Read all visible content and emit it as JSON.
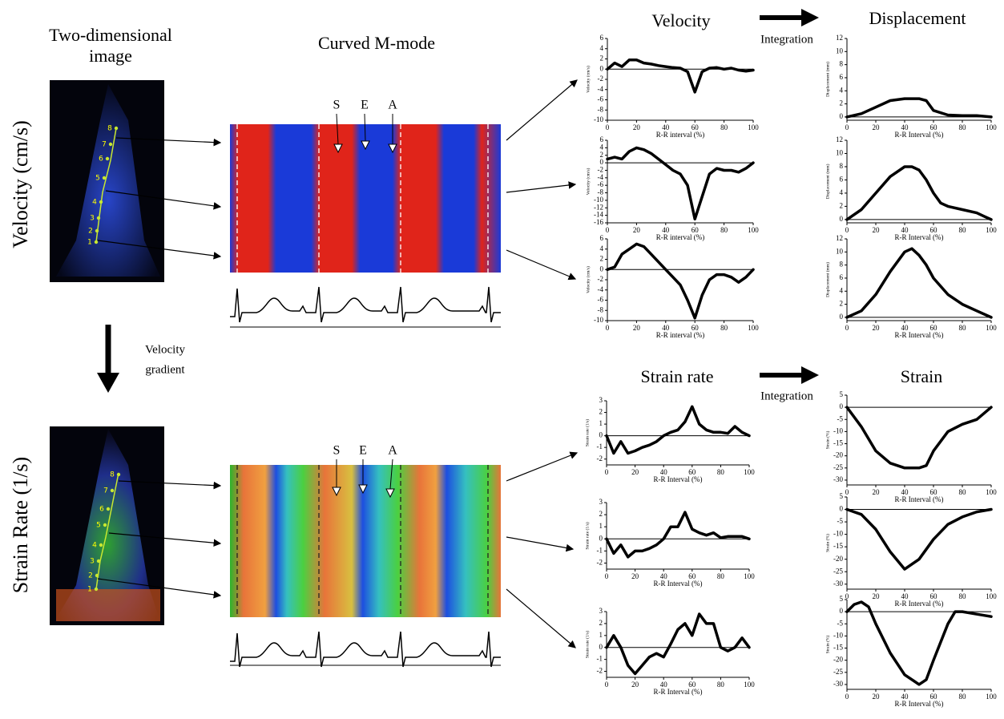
{
  "headers": {
    "two_d": [
      "Two-dimensional",
      "image"
    ],
    "mmode": "Curved M-mode",
    "velocity": "Velocity",
    "displacement": "Displacement",
    "integration": "Integration",
    "strain_rate": "Strain rate",
    "strain": "Strain",
    "velocity_gradient": [
      "Velocity",
      "gradient"
    ]
  },
  "side_labels": [
    "Velocity (cm/s)",
    "Strain Rate (1/s)"
  ],
  "events": [
    "S",
    "E",
    "A"
  ],
  "segments": [
    "1",
    "2",
    "3",
    "4",
    "5",
    "6",
    "7",
    "8"
  ],
  "chart_data": [
    {
      "type": "line",
      "ylabel": "Velocity (cm/s)",
      "xlabel": "R-R interval (%)",
      "color": "#000000",
      "x": [
        0,
        5,
        10,
        15,
        20,
        25,
        30,
        35,
        40,
        45,
        50,
        55,
        60,
        65,
        70,
        75,
        80,
        85,
        90,
        95,
        100
      ],
      "values": [
        0,
        1.2,
        0.5,
        1.8,
        1.8,
        1.2,
        1,
        0.7,
        0.5,
        0.3,
        0.2,
        -0.5,
        -4.5,
        -0.5,
        0.2,
        0.3,
        0,
        0.2,
        -0.2,
        -0.4,
        -0.2
      ],
      "xlim": [
        0,
        100
      ],
      "ylim": [
        -10,
        6
      ],
      "xticks": [
        0,
        20,
        40,
        60,
        80,
        100
      ],
      "yticks": [
        6,
        4,
        2,
        0,
        -2,
        -4,
        -6,
        -8,
        -10
      ]
    },
    {
      "type": "line",
      "ylabel": "Velocity (cm/s)",
      "xlabel": "R-R interval (%)",
      "color": "#000000",
      "x": [
        0,
        5,
        10,
        15,
        20,
        25,
        30,
        35,
        40,
        45,
        50,
        55,
        60,
        65,
        70,
        75,
        80,
        85,
        90,
        95,
        100
      ],
      "values": [
        1,
        1.5,
        1,
        3,
        4,
        3.5,
        2.5,
        1,
        -0.5,
        -2,
        -3,
        -6,
        -15,
        -9,
        -3,
        -1.5,
        -2,
        -2,
        -2.5,
        -1.5,
        0
      ],
      "xlim": [
        0,
        100
      ],
      "ylim": [
        -16,
        6
      ],
      "xticks": [
        0,
        20,
        40,
        60,
        80,
        100
      ],
      "yticks": [
        6,
        4,
        2,
        0,
        -2,
        -4,
        -6,
        -8,
        -10,
        -12,
        -14,
        -16
      ]
    },
    {
      "type": "line",
      "ylabel": "Velocity (cm/s)",
      "xlabel": "R-R interval (%)",
      "color": "#000000",
      "x": [
        0,
        5,
        10,
        15,
        20,
        25,
        30,
        35,
        40,
        45,
        50,
        55,
        60,
        65,
        70,
        75,
        80,
        85,
        90,
        95,
        100
      ],
      "values": [
        0,
        0.5,
        3,
        4,
        5,
        4.5,
        3,
        1.5,
        0,
        -1.5,
        -3,
        -6,
        -9.5,
        -5,
        -2,
        -1,
        -1,
        -1.5,
        -2.5,
        -1.5,
        0
      ],
      "xlim": [
        0,
        100
      ],
      "ylim": [
        -10,
        6
      ],
      "xticks": [
        0,
        20,
        40,
        60,
        80,
        100
      ],
      "yticks": [
        6,
        4,
        2,
        0,
        -2,
        -4,
        -6,
        -8,
        -10
      ]
    },
    {
      "type": "line",
      "ylabel": "Displacement (mm)",
      "xlabel": "R-R Interval (%)",
      "color": "#000000",
      "x": [
        0,
        10,
        20,
        30,
        40,
        50,
        55,
        60,
        70,
        80,
        90,
        100
      ],
      "values": [
        0,
        0.5,
        1.5,
        2.5,
        2.8,
        2.8,
        2.5,
        1,
        0.3,
        0.2,
        0.2,
        0
      ],
      "xlim": [
        0,
        100
      ],
      "ylim": [
        -0.5,
        12
      ],
      "xticks": [
        0,
        20,
        40,
        60,
        80,
        100
      ],
      "yticks": [
        0,
        2,
        4,
        6,
        8,
        10,
        12
      ]
    },
    {
      "type": "line",
      "ylabel": "Displacement (mm)",
      "xlabel": "R-R Interval (%)",
      "color": "#000000",
      "x": [
        0,
        10,
        20,
        30,
        40,
        45,
        50,
        55,
        60,
        65,
        70,
        80,
        90,
        95,
        100
      ],
      "values": [
        0,
        1.5,
        4,
        6.5,
        8,
        8,
        7.5,
        6,
        4,
        2.5,
        2,
        1.5,
        1,
        0.5,
        0
      ],
      "xlim": [
        0,
        100
      ],
      "ylim": [
        -0.5,
        12
      ],
      "xticks": [
        0,
        20,
        40,
        60,
        80,
        100
      ],
      "yticks": [
        0,
        2,
        4,
        6,
        8,
        10,
        12
      ]
    },
    {
      "type": "line",
      "ylabel": "Displacement (mm)",
      "xlabel": "R-R Interval (%)",
      "color": "#000000",
      "x": [
        0,
        10,
        20,
        30,
        40,
        45,
        50,
        55,
        60,
        70,
        80,
        90,
        100
      ],
      "values": [
        0,
        1,
        3.5,
        7,
        10,
        10.5,
        9.5,
        8,
        6,
        3.5,
        2,
        1,
        0
      ],
      "xlim": [
        0,
        100
      ],
      "ylim": [
        -0.5,
        12
      ],
      "xticks": [
        0,
        20,
        40,
        60,
        80,
        100
      ],
      "yticks": [
        0,
        2,
        4,
        6,
        8,
        10,
        12
      ]
    },
    {
      "type": "line",
      "ylabel": "Strain rate (1/s)",
      "xlabel": "R-R Interval (%)",
      "color": "#000000",
      "x": [
        0,
        5,
        10,
        15,
        20,
        25,
        30,
        35,
        40,
        45,
        50,
        55,
        60,
        65,
        70,
        75,
        80,
        85,
        90,
        95,
        100
      ],
      "values": [
        0,
        -1.5,
        -0.5,
        -1.5,
        -1.3,
        -1,
        -0.8,
        -0.5,
        0,
        0.3,
        0.5,
        1.2,
        2.5,
        1,
        0.5,
        0.3,
        0.3,
        0.2,
        0.8,
        0.3,
        0
      ],
      "xlim": [
        0,
        100
      ],
      "ylim": [
        -2.5,
        3
      ],
      "xticks": [
        0,
        20,
        40,
        60,
        80,
        100
      ],
      "yticks": [
        3,
        2,
        1,
        0,
        -1,
        -2
      ]
    },
    {
      "type": "line",
      "ylabel": "Strain rate (1/s)",
      "xlabel": "R-R Interval (%)",
      "color": "#000000",
      "x": [
        0,
        5,
        10,
        15,
        20,
        25,
        30,
        35,
        40,
        45,
        50,
        55,
        60,
        65,
        70,
        75,
        80,
        85,
        90,
        95,
        100
      ],
      "values": [
        0,
        -1.2,
        -0.5,
        -1.5,
        -1,
        -1,
        -0.8,
        -0.5,
        0,
        1,
        1,
        2.2,
        0.8,
        0.5,
        0.3,
        0.5,
        0.1,
        0.2,
        0.2,
        0.2,
        0
      ],
      "xlim": [
        0,
        100
      ],
      "ylim": [
        -2.5,
        3
      ],
      "xticks": [
        0,
        20,
        40,
        60,
        80,
        100
      ],
      "yticks": [
        3,
        2,
        1,
        0,
        -1,
        -2
      ]
    },
    {
      "type": "line",
      "ylabel": "Strain rate (1/s)",
      "xlabel": "R-R Interval (%)",
      "color": "#000000",
      "x": [
        0,
        5,
        10,
        15,
        20,
        25,
        30,
        35,
        40,
        45,
        50,
        55,
        60,
        65,
        70,
        75,
        80,
        85,
        90,
        95,
        100
      ],
      "values": [
        0,
        1,
        0,
        -1.5,
        -2.2,
        -1.5,
        -0.8,
        -0.5,
        -0.8,
        0.3,
        1.5,
        2,
        1,
        2.8,
        2,
        2,
        0,
        -0.3,
        0,
        0.8,
        0
      ],
      "xlim": [
        0,
        100
      ],
      "ylim": [
        -2.5,
        3
      ],
      "xticks": [
        0,
        20,
        40,
        60,
        80,
        100
      ],
      "yticks": [
        3,
        2,
        1,
        0,
        -1,
        -2
      ]
    },
    {
      "type": "line",
      "ylabel": "Strain (%)",
      "xlabel": "R-R Interval (%)",
      "color": "#000000",
      "x": [
        0,
        10,
        20,
        30,
        40,
        50,
        55,
        60,
        70,
        80,
        90,
        100
      ],
      "values": [
        0,
        -8,
        -18,
        -23,
        -25,
        -25,
        -24,
        -18,
        -10,
        -7,
        -5,
        0
      ],
      "xlim": [
        0,
        100
      ],
      "ylim": [
        -32,
        5
      ],
      "xticks": [
        0,
        20,
        40,
        60,
        80,
        100
      ],
      "yticks": [
        5,
        0,
        -5,
        -10,
        -15,
        -20,
        -25,
        -30
      ]
    },
    {
      "type": "line",
      "ylabel": "Strain (%)",
      "xlabel": "R-R Interval (%)",
      "color": "#000000",
      "x": [
        0,
        10,
        20,
        30,
        40,
        50,
        60,
        70,
        80,
        90,
        100
      ],
      "values": [
        0,
        -2,
        -8,
        -17,
        -24,
        -20,
        -12,
        -6,
        -3,
        -1,
        0
      ],
      "xlim": [
        0,
        100
      ],
      "ylim": [
        -32,
        5
      ],
      "xticks": [
        0,
        20,
        40,
        60,
        80,
        100
      ],
      "yticks": [
        5,
        0,
        -5,
        -10,
        -15,
        -20,
        -25,
        -30
      ]
    },
    {
      "type": "line",
      "ylabel": "Strain (%)",
      "xlabel": "R-R Interval (%)",
      "color": "#000000",
      "x": [
        0,
        5,
        10,
        15,
        20,
        30,
        40,
        50,
        55,
        60,
        70,
        75,
        80,
        90,
        100
      ],
      "values": [
        0,
        3,
        4,
        2,
        -5,
        -17,
        -26,
        -30,
        -28,
        -20,
        -5,
        0,
        0,
        -1,
        -2
      ],
      "xlim": [
        0,
        100
      ],
      "ylim": [
        -32,
        5
      ],
      "xticks": [
        0,
        20,
        40,
        60,
        80,
        100
      ],
      "yticks": [
        5,
        0,
        -5,
        -10,
        -15,
        -20,
        -25,
        -30
      ]
    }
  ]
}
